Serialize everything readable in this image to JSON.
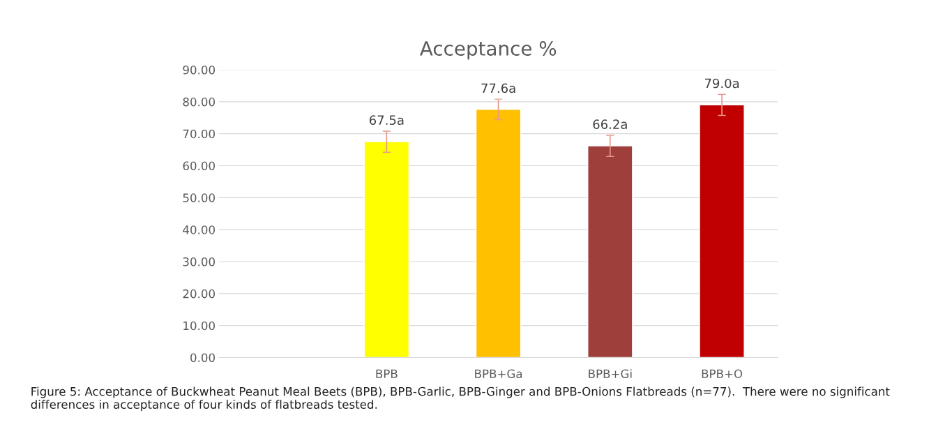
{
  "chart_data": {
    "type": "bar",
    "title": "Acceptance %",
    "categories": [
      null,
      "BPB",
      "BPB+Ga",
      "BPB+Gi",
      "BPB+O"
    ],
    "values": [
      null,
      67.5,
      77.6,
      66.2,
      79.0
    ],
    "value_labels": [
      null,
      "67.5a",
      "77.6a",
      "66.2a",
      "79.0a"
    ],
    "errors": [
      null,
      3.3,
      3.2,
      3.3,
      3.3
    ],
    "colors": [
      "#ffff00",
      "#ffff00",
      "#ffc000",
      "#9e3f3c",
      "#c00000"
    ],
    "ylim": [
      0,
      90
    ],
    "yticks": [
      {
        "value": 0,
        "label": "0.00"
      },
      {
        "value": 10,
        "label": "10.00"
      },
      {
        "value": 20,
        "label": "20.00"
      },
      {
        "value": 30,
        "label": "30.00"
      },
      {
        "value": 40,
        "label": "40.00"
      },
      {
        "value": 50,
        "label": "50.00"
      },
      {
        "value": 60,
        "label": "60.00"
      },
      {
        "value": 70,
        "label": "70.00"
      },
      {
        "value": 80,
        "label": "80.00"
      },
      {
        "value": 90,
        "label": "90.00"
      }
    ],
    "grid": "y",
    "annotations": [
      "Figure 5: Acceptance of Buckwheat Peanut Meal Beets (BPB), BPB-Garlic, BPB-Ginger and BPB-Onions Flatbreads (n=77).  There were no significant differences in acceptance of four kinds of flatbreads tested."
    ]
  }
}
